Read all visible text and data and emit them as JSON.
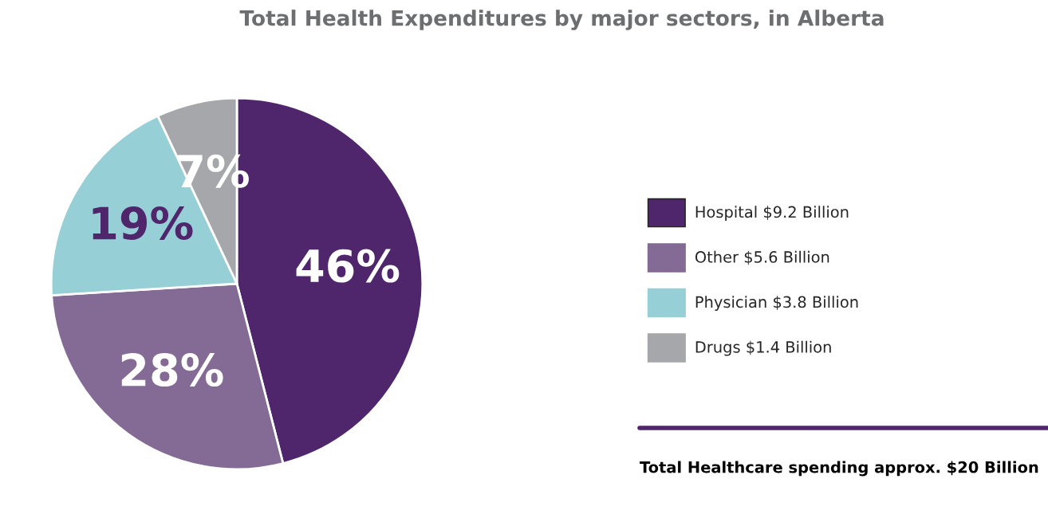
{
  "chart_data": {
    "type": "pie",
    "title": "Total Health Expenditures by major sectors, in Alberta",
    "categories": [
      "Hospital $9.2 Billion",
      "Other $5.6 Billion",
      "Physician $3.8 Billion",
      "Drugs $1.4 Billion"
    ],
    "values": [
      46,
      28,
      19,
      7
    ],
    "colors": [
      "#4f266b",
      "#836b96",
      "#97cfd6",
      "#a6a7aa"
    ],
    "value_labels": [
      "46%",
      "28%",
      "19%",
      "7%"
    ],
    "legend": "right",
    "annotations": [
      "Total Healthcare spending approx. $20 Billion"
    ]
  }
}
